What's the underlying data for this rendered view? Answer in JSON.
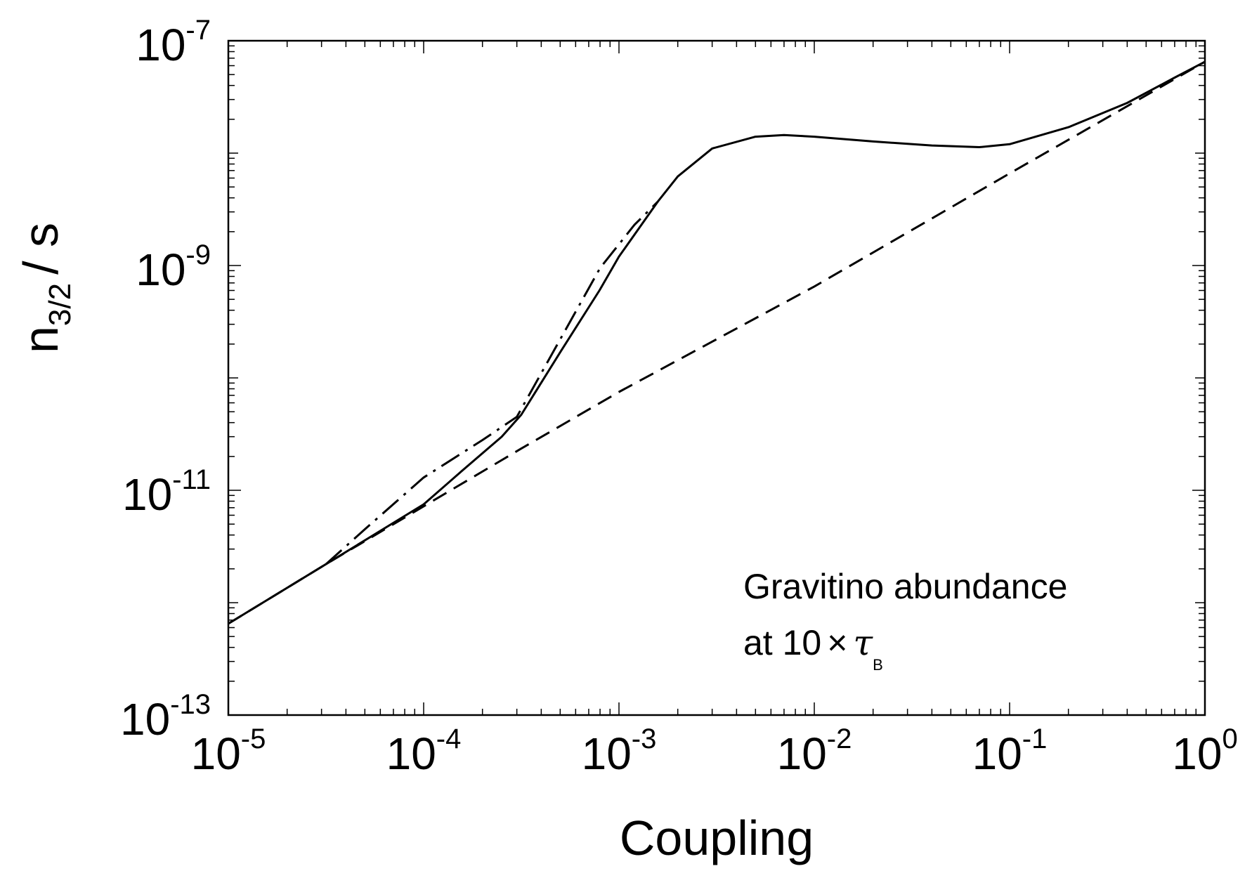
{
  "chart_data": {
    "type": "line",
    "xlabel": "Coupling",
    "ylabel": {
      "main": "n",
      "sub": "3/2",
      "rest": "/ s"
    },
    "xscale": "log",
    "yscale": "log",
    "xlim": [
      1e-05,
      1
    ],
    "ylim": [
      1e-13,
      1e-07
    ],
    "grid": false,
    "x_ticks": [
      {
        "base": "10",
        "exp": "-5",
        "value": 1e-05
      },
      {
        "base": "10",
        "exp": "-4",
        "value": 0.0001
      },
      {
        "base": "10",
        "exp": "-3",
        "value": 0.001
      },
      {
        "base": "10",
        "exp": "-2",
        "value": 0.01
      },
      {
        "base": "10",
        "exp": "-1",
        "value": 0.1
      },
      {
        "base": "10",
        "exp": "0",
        "value": 1
      }
    ],
    "y_ticks": [
      {
        "base": "10",
        "exp": "-13",
        "value": 1e-13
      },
      {
        "base": "10",
        "exp": "-11",
        "value": 1e-11
      },
      {
        "base": "10",
        "exp": "-9",
        "value": 1e-09
      },
      {
        "base": "10",
        "exp": "-7",
        "value": 1e-07
      }
    ],
    "annotation": {
      "line1": "Gravitino abundance",
      "line2_prefix": "at 10",
      "times": "×",
      "tau": "τ",
      "tau_sub": "B"
    },
    "series": [
      {
        "style": "solid",
        "points": [
          [
            1e-05,
            6.5e-13
          ],
          [
            3.16e-05,
            2.2e-12
          ],
          [
            0.0001,
            7.5e-12
          ],
          [
            0.000158,
            1.5e-11
          ],
          [
            0.000251,
            3e-11
          ],
          [
            0.000316,
            4.7e-11
          ],
          [
            0.000501,
            1.7e-10
          ],
          [
            0.000794,
            6e-10
          ],
          [
            0.001,
            1.2e-09
          ],
          [
            0.00158,
            3.7e-09
          ],
          [
            0.002,
            6.2e-09
          ],
          [
            0.003,
            1.1e-08
          ],
          [
            0.005,
            1.4e-08
          ],
          [
            0.007,
            1.45e-08
          ],
          [
            0.01,
            1.4e-08
          ],
          [
            0.02,
            1.27e-08
          ],
          [
            0.04,
            1.17e-08
          ],
          [
            0.07,
            1.13e-08
          ],
          [
            0.1,
            1.2e-08
          ],
          [
            0.2,
            1.7e-08
          ],
          [
            0.4,
            2.8e-08
          ],
          [
            0.7,
            4.7e-08
          ],
          [
            1,
            6.5e-08
          ]
        ]
      },
      {
        "style": "dashed",
        "points": [
          [
            1e-05,
            6.5e-13
          ],
          [
            3.16e-05,
            2.2e-12
          ],
          [
            0.0001,
            7.2e-12
          ],
          [
            0.000316,
            2.35e-11
          ],
          [
            0.001,
            7.5e-11
          ],
          [
            0.01,
            6.5e-10
          ],
          [
            0.1,
            6.6e-09
          ],
          [
            1,
            6.5e-08
          ]
        ]
      },
      {
        "style": "dash-dot",
        "points": [
          [
            3.16e-05,
            2.2e-12
          ],
          [
            5e-05,
            4.5e-12
          ],
          [
            0.0001,
            1.3e-11
          ],
          [
            0.0002,
            2.8e-11
          ],
          [
            0.0003,
            4.5e-11
          ],
          [
            0.0005,
            2.2e-10
          ],
          [
            0.0008,
            9.5e-10
          ],
          [
            0.0012,
            2.3e-09
          ],
          [
            0.00158,
            3.7e-09
          ]
        ]
      }
    ]
  }
}
